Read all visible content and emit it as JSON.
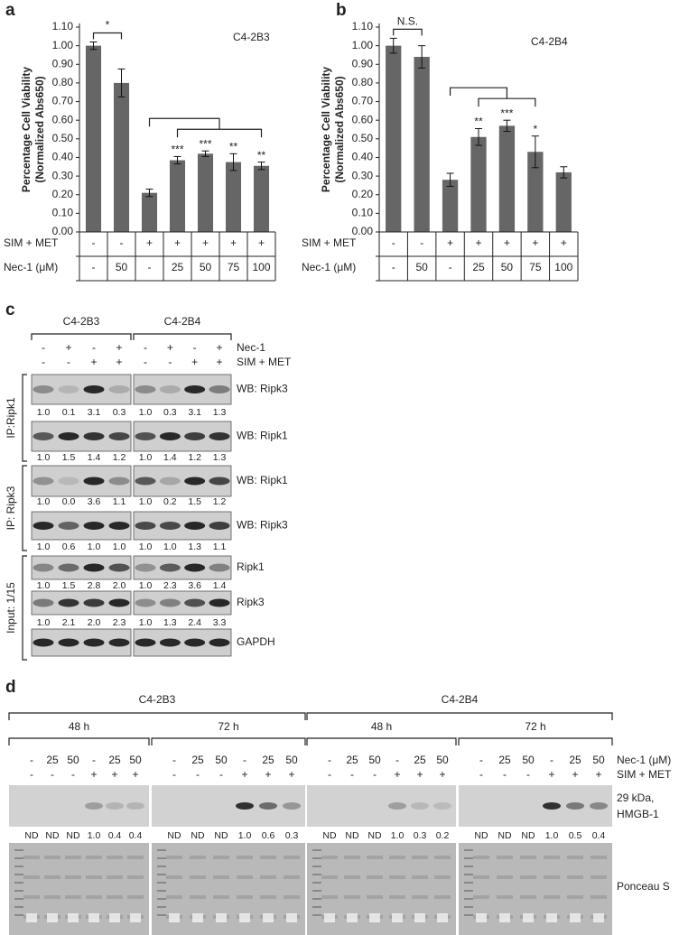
{
  "chart_data": [
    {
      "type": "bar",
      "panel_label": "a",
      "title": "C4-2B3",
      "ylabel": [
        "Percentage Cell Viability",
        "(Normalized Abs650)"
      ],
      "values": [
        1.0,
        0.8,
        0.21,
        0.385,
        0.42,
        0.375,
        0.355
      ],
      "errors": [
        0.02,
        0.075,
        0.02,
        0.02,
        0.015,
        0.045,
        0.02
      ],
      "significance": [
        null,
        null,
        null,
        "***",
        "***",
        "**",
        "**"
      ],
      "bracket_label": "*",
      "color": "#666666",
      "ylim": [
        0,
        1.1
      ],
      "yticks": [
        {
          "value": 0,
          "label": "0.00"
        },
        {
          "value": 0.1,
          "label": "0.10"
        },
        {
          "value": 0.2,
          "label": "0.20"
        },
        {
          "value": 0.3,
          "label": "0.30"
        },
        {
          "value": 0.4,
          "label": "0.40"
        },
        {
          "value": 0.5,
          "label": "0.50"
        },
        {
          "value": 0.6,
          "label": "0.60"
        },
        {
          "value": 0.7,
          "label": "0.70"
        },
        {
          "value": 0.8,
          "label": "0.80"
        },
        {
          "value": 0.9,
          "label": "0.90"
        },
        {
          "value": 1.0,
          "label": "1.00"
        },
        {
          "value": 1.1,
          "label": "1.10"
        }
      ],
      "table": [
        {
          "name": "SIM + MET",
          "cells": [
            "-",
            "-",
            "+",
            "+",
            "+",
            "+",
            "+"
          ]
        },
        {
          "name": "Nec-1 (μM)",
          "cells": [
            "-",
            "50",
            "-",
            "25",
            "50",
            "75",
            "100"
          ]
        }
      ]
    },
    {
      "type": "bar",
      "panel_label": "b",
      "title": "C4-2B4",
      "ylabel": [
        "Percentage Cell Viability",
        "(Normalized Abs650)"
      ],
      "values": [
        1.0,
        0.94,
        0.28,
        0.51,
        0.57,
        0.43,
        0.32
      ],
      "errors": [
        0.04,
        0.06,
        0.035,
        0.045,
        0.03,
        0.085,
        0.03
      ],
      "significance": [
        null,
        null,
        null,
        "**",
        "***",
        "*",
        null
      ],
      "bracket_label": "N.S.",
      "color": "#666666",
      "ylim": [
        0,
        1.1
      ],
      "yticks": [
        {
          "value": 0,
          "label": "0.00"
        },
        {
          "value": 0.1,
          "label": "0.10"
        },
        {
          "value": 0.2,
          "label": "0.20"
        },
        {
          "value": 0.3,
          "label": "0.30"
        },
        {
          "value": 0.4,
          "label": "0.40"
        },
        {
          "value": 0.5,
          "label": "0.50"
        },
        {
          "value": 0.6,
          "label": "0.60"
        },
        {
          "value": 0.7,
          "label": "0.70"
        },
        {
          "value": 0.8,
          "label": "0.80"
        },
        {
          "value": 0.9,
          "label": "0.90"
        },
        {
          "value": 1.0,
          "label": "1.00"
        },
        {
          "value": 1.1,
          "label": "1.10"
        }
      ],
      "table": [
        {
          "name": "SIM + MET",
          "cells": [
            "-",
            "-",
            "+",
            "+",
            "+",
            "+",
            "+"
          ]
        },
        {
          "name": "Nec-1 (μM)",
          "cells": [
            "-",
            "50",
            "-",
            "25",
            "50",
            "75",
            "100"
          ]
        }
      ]
    }
  ],
  "panel_c": {
    "label": "c",
    "groups": [
      "C4-2B3",
      "C4-2B4"
    ],
    "rows": [
      {
        "name": "Nec-1",
        "lanes": [
          "-",
          "+",
          "-",
          "+"
        ]
      },
      {
        "name": "SIM + MET",
        "lanes": [
          "-",
          "-",
          "+",
          "+"
        ]
      }
    ],
    "sections": [
      {
        "label": "IP:Ripk1",
        "blots": [
          {
            "name": "WB: Ripk3",
            "quant": [
              [
                "1.0",
                "0.1",
                "3.1",
                "0.3"
              ],
              [
                "1.0",
                "0.3",
                "3.1",
                "1.3"
              ]
            ]
          },
          {
            "name": "WB: Ripk1",
            "quant": [
              [
                "1.0",
                "1.5",
                "1.4",
                "1.2"
              ],
              [
                "1.0",
                "1.4",
                "1.2",
                "1.3"
              ]
            ]
          }
        ]
      },
      {
        "label": "IP: Ripk3",
        "blots": [
          {
            "name": "WB: Ripk1",
            "quant": [
              [
                "1.0",
                "0.0",
                "3.6",
                "1.1"
              ],
              [
                "1.0",
                "0.2",
                "1.5",
                "1.2"
              ]
            ]
          },
          {
            "name": "WB: Ripk3",
            "quant": [
              [
                "1.0",
                "0.6",
                "1.0",
                "1.0"
              ],
              [
                "1.0",
                "1.0",
                "1.3",
                "1.1"
              ]
            ]
          }
        ]
      },
      {
        "label": "Input: 1/15",
        "blots": [
          {
            "name": "Ripk1",
            "quant": [
              [
                "1.0",
                "1.5",
                "2.8",
                "2.0"
              ],
              [
                "1.0",
                "2.3",
                "3.6",
                "1.4"
              ]
            ]
          },
          {
            "name": "Ripk3",
            "quant": [
              [
                "1.0",
                "2.1",
                "2.0",
                "2.3"
              ],
              [
                "1.0",
                "1.3",
                "2.4",
                "3.3"
              ]
            ]
          },
          {
            "name": "GAPDH"
          }
        ]
      }
    ]
  },
  "panel_d": {
    "label": "d",
    "lane_rows": [
      {
        "name": "Nec-1 (μM)",
        "lanes": [
          "-",
          "25",
          "50",
          "-",
          "25",
          "50"
        ]
      },
      {
        "name": "SIM + MET",
        "lanes": [
          "-",
          "-",
          "-",
          "+",
          "+",
          "+"
        ]
      }
    ],
    "groups": [
      {
        "name": "C4-2B3",
        "times": [
          {
            "name": "48 h",
            "quant": [
              "ND",
              "ND",
              "ND",
              "1.0",
              "0.4",
              "0.4"
            ]
          },
          {
            "name": "72 h",
            "quant": [
              "ND",
              "ND",
              "ND",
              "1.0",
              "0.6",
              "0.3"
            ]
          }
        ]
      },
      {
        "name": "C4-2B4",
        "times": [
          {
            "name": "48 h",
            "quant": [
              "ND",
              "ND",
              "ND",
              "1.0",
              "0.3",
              "0.2"
            ]
          },
          {
            "name": "72 h",
            "quant": [
              "ND",
              "ND",
              "ND",
              "1.0",
              "0.5",
              "0.4"
            ]
          }
        ]
      }
    ],
    "blot_label": [
      "29 kDa,",
      "HMGB-1"
    ],
    "stain_label": "Ponceau S"
  }
}
